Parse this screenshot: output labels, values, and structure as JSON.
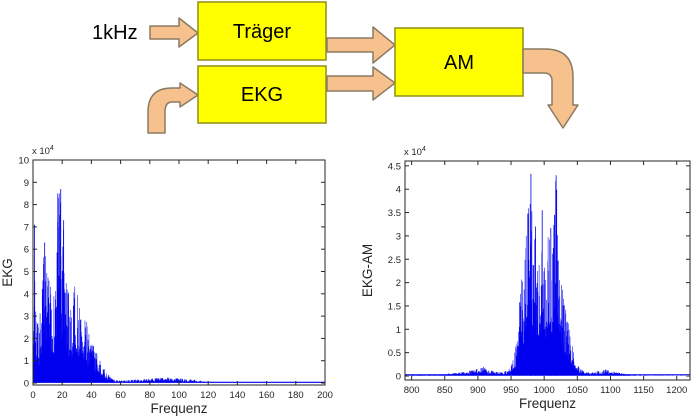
{
  "figure": {
    "background": "#FFFFFF"
  },
  "diagram": {
    "input_label": "1kHz",
    "boxes": [
      {
        "id": "traeger",
        "label": "Träger"
      },
      {
        "id": "ekg",
        "label": "EKG"
      },
      {
        "id": "am",
        "label": "AM"
      }
    ],
    "arrows": [
      "input-arrow-1khz-to-traeger",
      "ekg-input-curved-arrow",
      "traeger-to-am-arrow",
      "ekg-to-am-arrow",
      "am-output-curved-arrow"
    ],
    "colors": {
      "box_fill": "#FFFF00",
      "box_border": "#97941d",
      "arrow_fill": "#F7C18E",
      "arrow_border": "#8a7a63",
      "text": "#000000"
    }
  },
  "chart_data": [
    {
      "type": "line",
      "title": "",
      "xlabel": "Frequenz",
      "ylabel": "EKG",
      "scale_label": "x 10^4",
      "xlim": [
        0,
        200
      ],
      "ylim": [
        0,
        10
      ],
      "x_ticks": [
        0,
        20,
        40,
        60,
        80,
        100,
        120,
        140,
        160,
        180,
        200
      ],
      "y_ticks": [
        0,
        1,
        2,
        3,
        4,
        5,
        6,
        7,
        8,
        9,
        10
      ],
      "grid": false,
      "legend": "none",
      "line_color": "#0000EE",
      "axis_color": "#262626",
      "baseline": 0.04,
      "peaks": [
        {
          "x": 1,
          "y": 7.1
        },
        {
          "x": 17,
          "y": 8.5
        },
        {
          "x": 19,
          "y": 8.7
        },
        {
          "x": 21,
          "y": 7.3
        },
        {
          "x": 8,
          "y": 6.3
        }
      ],
      "envelope": [
        [
          0,
          0.3
        ],
        [
          1,
          7.1
        ],
        [
          2,
          3.2
        ],
        [
          4,
          2.6
        ],
        [
          6,
          4.3
        ],
        [
          8,
          6.3
        ],
        [
          9,
          5.2
        ],
        [
          11,
          4.6
        ],
        [
          13,
          4.1
        ],
        [
          15,
          3.9
        ],
        [
          17,
          8.5
        ],
        [
          19,
          8.7
        ],
        [
          20,
          5.6
        ],
        [
          21,
          7.3
        ],
        [
          23,
          4.8
        ],
        [
          25,
          3.9
        ],
        [
          27,
          3.7
        ],
        [
          28,
          4.6
        ],
        [
          30,
          4.4
        ],
        [
          32,
          3.6
        ],
        [
          34,
          3.0
        ],
        [
          36,
          2.9
        ],
        [
          38,
          2.5
        ],
        [
          40,
          2.2
        ],
        [
          42,
          1.7
        ],
        [
          44,
          1.3
        ],
        [
          46,
          1.0
        ],
        [
          48,
          0.75
        ],
        [
          50,
          0.5
        ],
        [
          53,
          0.28
        ],
        [
          56,
          0.16
        ],
        [
          60,
          0.12
        ],
        [
          65,
          0.13
        ],
        [
          70,
          0.16
        ],
        [
          75,
          0.18
        ],
        [
          80,
          0.2
        ],
        [
          85,
          0.22
        ],
        [
          90,
          0.26
        ],
        [
          95,
          0.24
        ],
        [
          100,
          0.21
        ],
        [
          105,
          0.19
        ],
        [
          110,
          0.16
        ],
        [
          113,
          0.13
        ],
        [
          118,
          0.07
        ],
        [
          124,
          0.05
        ],
        [
          140,
          0.05
        ],
        [
          160,
          0.05
        ],
        [
          180,
          0.05
        ],
        [
          200,
          0.05
        ]
      ]
    },
    {
      "type": "line",
      "title": "",
      "xlabel": "Frequenz",
      "ylabel": "EKG-AM",
      "scale_label": "x 10^4",
      "xlim": [
        790,
        1220
      ],
      "ylim": [
        0,
        4.5
      ],
      "x_ticks": [
        800,
        850,
        900,
        950,
        1000,
        1050,
        1100,
        1150,
        1200
      ],
      "y_ticks": [
        0,
        0.5,
        1,
        1.5,
        2,
        2.5,
        3,
        3.5,
        4,
        4.5
      ],
      "grid": false,
      "legend": "none",
      "line_color": "#0000EE",
      "axis_color": "#262626",
      "baseline": 0.03,
      "peaks": [
        {
          "x": 980,
          "y": 4.33
        },
        {
          "x": 1018,
          "y": 4.3
        },
        {
          "x": 997,
          "y": 3.55
        },
        {
          "x": 1010,
          "y": 3.17
        },
        {
          "x": 987,
          "y": 3.2
        }
      ],
      "envelope": [
        [
          790,
          0.03
        ],
        [
          840,
          0.03
        ],
        [
          860,
          0.06
        ],
        [
          875,
          0.08
        ],
        [
          890,
          0.12
        ],
        [
          900,
          0.17
        ],
        [
          908,
          0.2
        ],
        [
          915,
          0.15
        ],
        [
          925,
          0.1
        ],
        [
          935,
          0.08
        ],
        [
          945,
          0.12
        ],
        [
          950,
          0.22
        ],
        [
          955,
          0.45
        ],
        [
          959,
          0.9
        ],
        [
          963,
          1.6
        ],
        [
          966,
          2.3
        ],
        [
          970,
          2.3
        ],
        [
          973,
          3.1
        ],
        [
          977,
          4.0
        ],
        [
          980,
          4.33
        ],
        [
          983,
          3.1
        ],
        [
          986,
          3.2
        ],
        [
          990,
          2.6
        ],
        [
          993,
          2.9
        ],
        [
          997,
          3.55
        ],
        [
          1000,
          2.9
        ],
        [
          1003,
          2.7
        ],
        [
          1006,
          3.1
        ],
        [
          1010,
          3.17
        ],
        [
          1013,
          2.9
        ],
        [
          1016,
          4.3
        ],
        [
          1019,
          4.2
        ],
        [
          1022,
          2.5
        ],
        [
          1026,
          2.2
        ],
        [
          1030,
          1.7
        ],
        [
          1034,
          1.3
        ],
        [
          1038,
          1.0
        ],
        [
          1042,
          0.7
        ],
        [
          1046,
          0.45
        ],
        [
          1050,
          0.28
        ],
        [
          1055,
          0.15
        ],
        [
          1062,
          0.09
        ],
        [
          1070,
          0.07
        ],
        [
          1080,
          0.1
        ],
        [
          1088,
          0.14
        ],
        [
          1093,
          0.15
        ],
        [
          1100,
          0.11
        ],
        [
          1110,
          0.08
        ],
        [
          1120,
          0.05
        ],
        [
          1132,
          0.03
        ],
        [
          1150,
          0.02
        ],
        [
          1180,
          0.02
        ],
        [
          1220,
          0.02
        ]
      ]
    }
  ]
}
